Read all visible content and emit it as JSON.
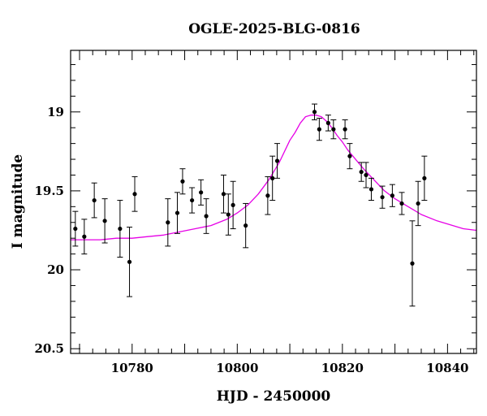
{
  "chart_data": {
    "type": "scatter",
    "title": "OGLE-2025-BLG-0816",
    "xlabel": "HJD - 2450000",
    "ylabel": "I magnitude",
    "xlim": [
      10768.3,
      10845.5
    ],
    "ylim": [
      20.53,
      18.61
    ],
    "y_inverted": true,
    "x_ticks": [
      10780,
      10800,
      10820,
      10840
    ],
    "y_ticks": [
      19,
      19.5,
      20,
      20.5
    ],
    "x_tick_labels": [
      "10780",
      "10800",
      "10820",
      "10840"
    ],
    "y_tick_labels": [
      "19",
      "19.5",
      "20",
      "20.5"
    ],
    "grid": false,
    "legend": "none",
    "colors": {
      "points": "#000000",
      "model": "#e600e6",
      "axes": "#000000"
    },
    "observations": [
      {
        "x": 10769.2,
        "y": 19.74,
        "err": 0.11
      },
      {
        "x": 10770.9,
        "y": 19.79,
        "err": 0.11
      },
      {
        "x": 10772.8,
        "y": 19.56,
        "err": 0.11
      },
      {
        "x": 10774.8,
        "y": 19.69,
        "err": 0.14
      },
      {
        "x": 10777.7,
        "y": 19.74,
        "err": 0.18
      },
      {
        "x": 10779.5,
        "y": 19.95,
        "err": 0.22
      },
      {
        "x": 10780.5,
        "y": 19.52,
        "err": 0.11
      },
      {
        "x": 10786.8,
        "y": 19.7,
        "err": 0.15
      },
      {
        "x": 10788.6,
        "y": 19.64,
        "err": 0.13
      },
      {
        "x": 10789.6,
        "y": 19.44,
        "err": 0.08
      },
      {
        "x": 10791.4,
        "y": 19.56,
        "err": 0.08
      },
      {
        "x": 10793.1,
        "y": 19.51,
        "err": 0.08
      },
      {
        "x": 10794.1,
        "y": 19.66,
        "err": 0.11
      },
      {
        "x": 10797.4,
        "y": 19.52,
        "err": 0.12
      },
      {
        "x": 10798.3,
        "y": 19.65,
        "err": 0.13
      },
      {
        "x": 10799.2,
        "y": 19.59,
        "err": 0.15
      },
      {
        "x": 10801.6,
        "y": 19.72,
        "err": 0.14
      },
      {
        "x": 10805.8,
        "y": 19.53,
        "err": 0.12
      },
      {
        "x": 10806.7,
        "y": 19.42,
        "err": 0.14
      },
      {
        "x": 10807.6,
        "y": 19.31,
        "err": 0.11
      },
      {
        "x": 10814.7,
        "y": 19.0,
        "err": 0.05
      },
      {
        "x": 10815.6,
        "y": 19.11,
        "err": 0.07
      },
      {
        "x": 10817.3,
        "y": 19.07,
        "err": 0.05
      },
      {
        "x": 10818.3,
        "y": 19.11,
        "err": 0.06
      },
      {
        "x": 10820.5,
        "y": 19.11,
        "err": 0.06
      },
      {
        "x": 10821.4,
        "y": 19.28,
        "err": 0.08
      },
      {
        "x": 10823.6,
        "y": 19.38,
        "err": 0.06
      },
      {
        "x": 10824.5,
        "y": 19.4,
        "err": 0.08
      },
      {
        "x": 10825.5,
        "y": 19.49,
        "err": 0.07
      },
      {
        "x": 10827.6,
        "y": 19.54,
        "err": 0.07
      },
      {
        "x": 10829.5,
        "y": 19.53,
        "err": 0.07
      },
      {
        "x": 10831.3,
        "y": 19.58,
        "err": 0.07
      },
      {
        "x": 10833.3,
        "y": 19.96,
        "err": 0.27
      },
      {
        "x": 10834.4,
        "y": 19.58,
        "err": 0.14
      },
      {
        "x": 10835.6,
        "y": 19.42,
        "err": 0.14
      }
    ],
    "model": {
      "x": [
        10768.3,
        10771,
        10774,
        10777,
        10780,
        10783,
        10786,
        10789,
        10792,
        10795,
        10798,
        10800,
        10802,
        10804,
        10806,
        10808,
        10810,
        10811,
        10812,
        10813,
        10814,
        10815,
        10816,
        10817,
        10818,
        10819,
        10820,
        10821,
        10822,
        10824,
        10826,
        10828,
        10830,
        10832,
        10835,
        10838,
        10841,
        10843,
        10845.5
      ],
      "y": [
        19.81,
        19.81,
        19.81,
        19.8,
        19.8,
        19.79,
        19.78,
        19.76,
        19.74,
        19.72,
        19.68,
        19.64,
        19.59,
        19.52,
        19.43,
        19.32,
        19.18,
        19.13,
        19.07,
        19.03,
        19.02,
        19.02,
        19.03,
        19.06,
        19.1,
        19.15,
        19.19,
        19.24,
        19.28,
        19.36,
        19.43,
        19.5,
        19.55,
        19.59,
        19.65,
        19.69,
        19.72,
        19.74,
        19.75
      ]
    }
  }
}
